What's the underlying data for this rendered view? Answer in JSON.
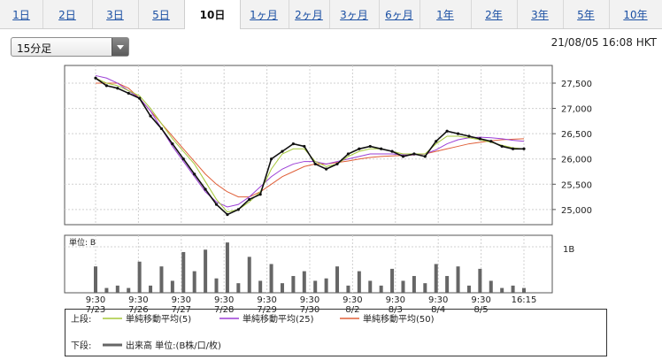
{
  "tabs": [
    "1日",
    "2日",
    "3日",
    "5日",
    "10日",
    "1ヶ月",
    "2ヶ月",
    "3ヶ月",
    "6ヶ月",
    "1年",
    "2年",
    "3年",
    "5年",
    "10年"
  ],
  "active_tab": "10日",
  "interval_select": {
    "value": "15分足"
  },
  "timestamp": "21/08/05 16:08 HKT",
  "colors": {
    "candle": "#111111",
    "ma5": "#a6c93a",
    "ma25": "#9b3fd6",
    "ma50": "#e0603a",
    "volume": "#666666",
    "axis": "#555555"
  },
  "chart_data": {
    "type": "line",
    "x_ticks": [
      {
        "time": "9:30",
        "date": "7/23"
      },
      {
        "time": "9:30",
        "date": "7/26"
      },
      {
        "time": "9:30",
        "date": "7/27"
      },
      {
        "time": "9:30",
        "date": "7/28"
      },
      {
        "time": "9:30",
        "date": "7/29"
      },
      {
        "time": "9:30",
        "date": "7/30"
      },
      {
        "time": "9:30",
        "date": "8/2"
      },
      {
        "time": "9:30",
        "date": "8/3"
      },
      {
        "time": "9:30",
        "date": "8/4"
      },
      {
        "time": "9:30",
        "date": "8/5"
      },
      {
        "time": "16:15",
        "date": ""
      }
    ],
    "price_axis": {
      "ylim": [
        24700,
        27850
      ],
      "ticks": [
        "27,500",
        "27,000",
        "26,500",
        "26,000",
        "25,500",
        "25,000"
      ],
      "tick_values": [
        27500,
        27000,
        26500,
        26000,
        25500,
        25000
      ]
    },
    "price_close": [
      27600,
      27450,
      27400,
      27300,
      27200,
      26850,
      26600,
      26300,
      26000,
      25700,
      25400,
      25100,
      24900,
      25000,
      25200,
      25300,
      26000,
      26150,
      26300,
      26250,
      25900,
      25800,
      25900,
      26100,
      26200,
      26250,
      26200,
      26150,
      26050,
      26100,
      26050,
      26350,
      26550,
      26500,
      26450,
      26400,
      26350,
      26250,
      26200,
      26200
    ],
    "ma5": [
      27600,
      27500,
      27450,
      27350,
      27250,
      27000,
      26700,
      26400,
      26150,
      25900,
      25550,
      25200,
      24950,
      25000,
      25150,
      25350,
      25800,
      26100,
      26200,
      26200,
      25950,
      25850,
      25900,
      26050,
      26150,
      26200,
      26200,
      26150,
      26100,
      26100,
      26100,
      26300,
      26450,
      26450,
      26420,
      26380,
      26330,
      26270,
      26220,
      26200
    ],
    "ma25": [
      27650,
      27600,
      27500,
      27350,
      27200,
      26950,
      26600,
      26250,
      25950,
      25650,
      25350,
      25150,
      25050,
      25100,
      25250,
      25450,
      25650,
      25800,
      25900,
      25950,
      25950,
      25900,
      25950,
      26000,
      26050,
      26100,
      26100,
      26100,
      26080,
      26080,
      26100,
      26180,
      26300,
      26380,
      26420,
      26430,
      26420,
      26400,
      26370,
      26350
    ],
    "ma50": [
      27500,
      27500,
      27500,
      27400,
      27200,
      26950,
      26700,
      26450,
      26200,
      25950,
      25700,
      25500,
      25350,
      25250,
      25250,
      25350,
      25500,
      25650,
      25750,
      25850,
      25900,
      25900,
      25930,
      25960,
      26000,
      26030,
      26050,
      26060,
      26070,
      26080,
      26100,
      26150,
      26200,
      26250,
      26300,
      26330,
      26360,
      26380,
      26390,
      26400
    ],
    "volume_axis": {
      "label": "単位: B",
      "tick": "1B",
      "ylim": [
        0,
        1.2
      ]
    },
    "volume": [
      0.55,
      0.1,
      0.15,
      0.1,
      0.65,
      0.15,
      0.55,
      0.25,
      0.85,
      0.45,
      0.9,
      0.3,
      1.05,
      0.2,
      0.75,
      0.25,
      0.6,
      0.2,
      0.35,
      0.45,
      0.25,
      0.3,
      0.55,
      0.15,
      0.45,
      0.25,
      0.15,
      0.5,
      0.25,
      0.35,
      0.2,
      0.6,
      0.35,
      0.55,
      0.15,
      0.5,
      0.25,
      0.1,
      0.15,
      0.1
    ],
    "legend_top": {
      "label": "上段:",
      "items": [
        "単純移動平均(5)",
        "単純移動平均(25)",
        "単純移動平均(50)"
      ]
    },
    "legend_bottom": {
      "label": "下段:",
      "items": [
        "出来高 単位:(B株/口/枚)"
      ]
    }
  }
}
